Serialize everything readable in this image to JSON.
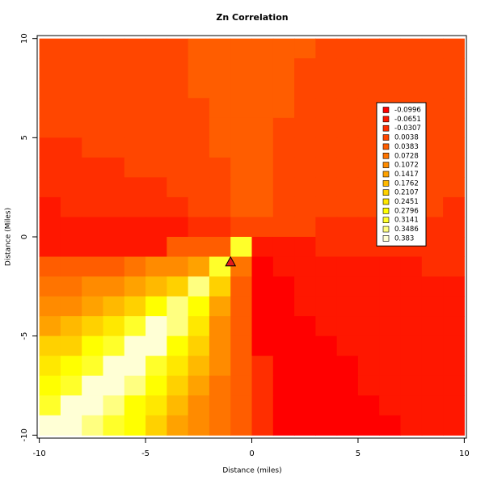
{
  "chart_data": {
    "type": "heatmap",
    "title": "Zn Correlation",
    "x_label": "Distance (miles)",
    "y_label": "Distance (Miles)",
    "xlim": [
      -10.1,
      10.1
    ],
    "ylim": [
      -10.15,
      10.15
    ],
    "xticks": [
      -10,
      -5,
      0,
      5,
      10
    ],
    "yticks": [
      -10,
      -5,
      0,
      5,
      10
    ],
    "legend": "top-right",
    "levels": [
      -0.0996,
      -0.0651,
      -0.0307,
      0.0038,
      0.0383,
      0.0728,
      0.1072,
      0.1417,
      0.1762,
      0.2107,
      0.2451,
      0.2796,
      0.3141,
      0.3486,
      0.383
    ],
    "colors": [
      "#FF0000",
      "#FF1700",
      "#FF2E00",
      "#FF4600",
      "#FF5D00",
      "#FF7400",
      "#FF8B00",
      "#FFA200",
      "#FFB900",
      "#FFD100",
      "#FFE800",
      "#FFFF00",
      "#FFFF2A",
      "#FFFF80",
      "#FFFFD5"
    ],
    "x": [
      -9.5,
      -8.5,
      -7.5,
      -6.5,
      -5.5,
      -4.5,
      -3.5,
      -2.5,
      -1.5,
      -0.5,
      0.5,
      1.5,
      2.5,
      3.5,
      4.5,
      5.5,
      6.5,
      7.5,
      8.5,
      9.5
    ],
    "y": [
      9.5,
      8.5,
      7.5,
      6.5,
      5.5,
      4.5,
      3.5,
      2.5,
      1.5,
      0.5,
      -0.5,
      -1.5,
      -2.5,
      -3.5,
      -4.5,
      -5.5,
      -6.5,
      -7.5,
      -8.5,
      -9.5
    ],
    "z": [
      [
        0.0038,
        0.0038,
        0.0038,
        0.0038,
        0.0038,
        0.0038,
        0.0038,
        0.0383,
        0.0383,
        0.0383,
        0.0383,
        0.0383,
        0.0383,
        0.0038,
        0.0038,
        0.0038,
        0.0038,
        0.0038,
        0.0038,
        0.0038
      ],
      [
        0.0038,
        0.0038,
        0.0038,
        0.0038,
        0.0038,
        0.0038,
        0.0038,
        0.0383,
        0.0383,
        0.0383,
        0.0383,
        0.0383,
        0.0038,
        0.0038,
        0.0038,
        0.0038,
        0.0038,
        0.0038,
        0.0038,
        0.0038
      ],
      [
        0.0038,
        0.0038,
        0.0038,
        0.0038,
        0.0038,
        0.0038,
        0.0038,
        0.0383,
        0.0383,
        0.0383,
        0.0383,
        0.0383,
        0.0038,
        0.0038,
        0.0038,
        0.0038,
        0.0038,
        0.0038,
        0.0038,
        0.0038
      ],
      [
        0.0038,
        0.0038,
        0.0038,
        0.0038,
        0.0038,
        0.0038,
        0.0038,
        0.0038,
        0.0383,
        0.0383,
        0.0383,
        0.0383,
        0.0038,
        0.0038,
        0.0038,
        0.0038,
        0.0038,
        0.0038,
        0.0038,
        0.0038
      ],
      [
        0.0038,
        0.0038,
        0.0038,
        0.0038,
        0.0038,
        0.0038,
        0.0038,
        0.0038,
        0.0383,
        0.0383,
        0.0383,
        0.0038,
        0.0038,
        0.0038,
        0.0038,
        0.0038,
        0.0038,
        0.0038,
        0.0038,
        0.0038
      ],
      [
        -0.0307,
        -0.0307,
        0.0038,
        0.0038,
        0.0038,
        0.0038,
        0.0038,
        0.0038,
        0.0383,
        0.0383,
        0.0383,
        0.0038,
        0.0038,
        0.0038,
        0.0038,
        0.0038,
        0.0038,
        0.0038,
        0.0038,
        0.0038
      ],
      [
        -0.0307,
        -0.0307,
        -0.0307,
        -0.0307,
        0.0038,
        0.0038,
        0.0038,
        0.0038,
        0.0038,
        0.0383,
        0.0383,
        0.0038,
        0.0038,
        0.0038,
        0.0038,
        0.0038,
        0.0038,
        0.0038,
        0.0038,
        0.0038
      ],
      [
        -0.0307,
        -0.0307,
        -0.0307,
        -0.0307,
        -0.0307,
        -0.0307,
        0.0038,
        0.0038,
        0.0038,
        0.0383,
        0.0383,
        0.0038,
        0.0038,
        0.0038,
        0.0038,
        0.0038,
        0.0038,
        0.0038,
        0.0038,
        0.0038
      ],
      [
        -0.0651,
        -0.0307,
        -0.0307,
        -0.0307,
        -0.0307,
        -0.0307,
        -0.0307,
        0.0038,
        0.0038,
        0.0383,
        0.0383,
        0.0038,
        0.0038,
        0.0038,
        0.0038,
        0.0038,
        0.0038,
        0.0038,
        0.0038,
        -0.0307
      ],
      [
        -0.0651,
        -0.0651,
        -0.0651,
        -0.0651,
        -0.0651,
        -0.0651,
        -0.0651,
        -0.0307,
        -0.0307,
        0.0038,
        0.0038,
        0.0038,
        0.0038,
        -0.0307,
        -0.0307,
        -0.0307,
        -0.0307,
        -0.0307,
        -0.0307,
        -0.0307
      ],
      [
        -0.0651,
        -0.0651,
        -0.0651,
        -0.0651,
        -0.0651,
        -0.0651,
        0.0383,
        0.0383,
        0.0383,
        0.3141,
        -0.0651,
        -0.0651,
        -0.0651,
        -0.0307,
        -0.0307,
        -0.0307,
        -0.0307,
        -0.0307,
        -0.0307,
        -0.0307
      ],
      [
        0.0383,
        0.0383,
        0.0383,
        0.0383,
        0.0728,
        0.1072,
        0.1072,
        0.1417,
        0.3141,
        0.0728,
        -0.0996,
        -0.0651,
        -0.0651,
        -0.0651,
        -0.0651,
        -0.0651,
        -0.0651,
        -0.0651,
        -0.0307,
        -0.0307
      ],
      [
        0.0728,
        0.0728,
        0.1072,
        0.1072,
        0.1417,
        0.1762,
        0.2107,
        0.3486,
        0.2107,
        0.0383,
        -0.0996,
        -0.0996,
        -0.0651,
        -0.0651,
        -0.0651,
        -0.0651,
        -0.0651,
        -0.0651,
        -0.0651,
        -0.0651
      ],
      [
        0.1072,
        0.1072,
        0.1417,
        0.1762,
        0.2107,
        0.2796,
        0.3486,
        0.2796,
        0.1417,
        0.0383,
        -0.0996,
        -0.0996,
        -0.0651,
        -0.0651,
        -0.0651,
        -0.0651,
        -0.0651,
        -0.0651,
        -0.0651,
        -0.0651
      ],
      [
        0.1417,
        0.1762,
        0.2107,
        0.2451,
        0.3141,
        0.383,
        0.3486,
        0.2451,
        0.1072,
        0.0383,
        -0.0996,
        -0.0996,
        -0.0996,
        -0.0651,
        -0.0651,
        -0.0651,
        -0.0651,
        -0.0651,
        -0.0651,
        -0.0651
      ],
      [
        0.2107,
        0.2107,
        0.2796,
        0.3141,
        0.383,
        0.383,
        0.2796,
        0.2107,
        0.1072,
        0.0383,
        -0.0996,
        -0.0996,
        -0.0996,
        -0.0996,
        -0.0651,
        -0.0651,
        -0.0651,
        -0.0651,
        -0.0651,
        -0.0651
      ],
      [
        0.2451,
        0.2796,
        0.3141,
        0.383,
        0.383,
        0.3141,
        0.2451,
        0.1762,
        0.1072,
        0.0383,
        -0.0307,
        -0.0996,
        -0.0996,
        -0.0996,
        -0.0996,
        -0.0651,
        -0.0651,
        -0.0651,
        -0.0651,
        -0.0651
      ],
      [
        0.2796,
        0.3141,
        0.383,
        0.383,
        0.3486,
        0.2796,
        0.2107,
        0.1417,
        0.0728,
        0.0383,
        -0.0307,
        -0.0996,
        -0.0996,
        -0.0996,
        -0.0996,
        -0.0651,
        -0.0651,
        -0.0651,
        -0.0651,
        -0.0651
      ],
      [
        0.3141,
        0.383,
        0.383,
        0.3486,
        0.2796,
        0.2451,
        0.1762,
        0.1072,
        0.0728,
        0.0383,
        -0.0307,
        -0.0996,
        -0.0996,
        -0.0996,
        -0.0996,
        -0.0996,
        -0.0651,
        -0.0651,
        -0.0651,
        -0.0651
      ],
      [
        0.383,
        0.383,
        0.3486,
        0.3141,
        0.2796,
        0.2107,
        0.1417,
        0.1072,
        0.0728,
        0.0383,
        -0.0307,
        -0.0996,
        -0.0996,
        -0.0996,
        -0.0996,
        -0.0996,
        -0.0996,
        -0.0651,
        -0.0651,
        -0.0651
      ]
    ],
    "point": {
      "x": -1,
      "y": -1.3,
      "color": "#E41A1C"
    }
  }
}
